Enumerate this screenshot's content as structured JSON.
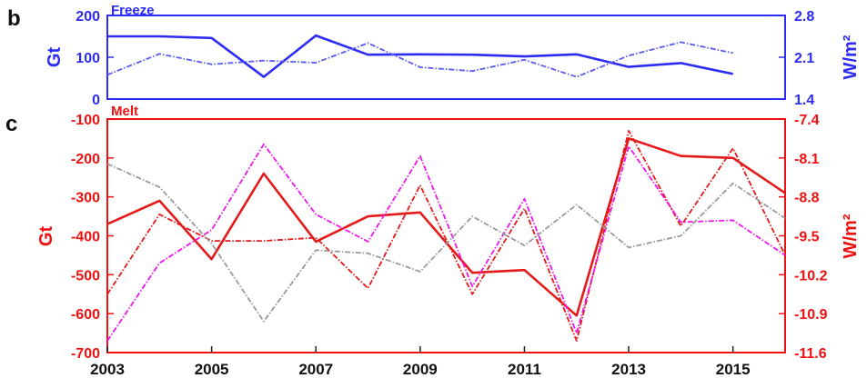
{
  "chart_data": [
    {
      "panel_label": "b",
      "title": "Freeze",
      "type": "line",
      "x": [
        2003,
        2004,
        2005,
        2006,
        2007,
        2008,
        2009,
        2010,
        2011,
        2012,
        2013,
        2014,
        2015,
        2016
      ],
      "xlim": [
        2003,
        2016
      ],
      "ylabel_left": "Gt",
      "ylim_left": [
        0,
        200
      ],
      "yticks_left": [
        "0",
        "100",
        "200"
      ],
      "ylabel_right": "W/m²",
      "ylim_right": [
        1.4,
        2.8
      ],
      "yticks_right": [
        "1.4",
        "2.1",
        "2.8"
      ],
      "color": "#2c2cf2",
      "series": [
        {
          "axis": "left",
          "style": "solid",
          "color": "#2c2cf2",
          "values": [
            150,
            150,
            146,
            53,
            152,
            106,
            107,
            106,
            102,
            107,
            77,
            86,
            60,
            null
          ]
        },
        {
          "axis": "left",
          "style": "dashdot",
          "color": "#5a5af0",
          "values": [
            58,
            108,
            83,
            92,
            87,
            134,
            76,
            67,
            94,
            53,
            104,
            136,
            110,
            null
          ]
        }
      ]
    },
    {
      "panel_label": "c",
      "title": "Melt",
      "type": "line",
      "x": [
        2003,
        2004,
        2005,
        2006,
        2007,
        2008,
        2009,
        2010,
        2011,
        2012,
        2013,
        2014,
        2015,
        2016
      ],
      "xlim": [
        2003,
        2016
      ],
      "xticks": [
        "2003",
        "2005",
        "2007",
        "2009",
        "2011",
        "2013",
        "2015"
      ],
      "ylabel_left": "Gt",
      "ylim_left": [
        -700,
        -100
      ],
      "yticks_left": [
        "-100",
        "-200",
        "-300",
        "-400",
        "-500",
        "-600",
        "-700"
      ],
      "ylabel_right": "W/m²",
      "ylim_right": [
        -11.6,
        -7.4
      ],
      "yticks_right": [
        "-7.4",
        "-8.1",
        "-8.8",
        "-9.5",
        "-10.2",
        "-10.9",
        "-11.6"
      ],
      "color": "#ee1111",
      "series": [
        {
          "axis": "left",
          "style": "solid",
          "color": "#e41a1a",
          "values": [
            -370,
            -310,
            -460,
            -240,
            -415,
            -350,
            -340,
            -495,
            -488,
            -605,
            -150,
            -195,
            -200,
            -290
          ]
        },
        {
          "axis": "left",
          "style": "dashdot",
          "color": "#e41a1a",
          "values": [
            -550,
            -345,
            -413,
            -413,
            -405,
            -535,
            -270,
            -550,
            -330,
            -670,
            -130,
            -375,
            -175,
            -450
          ]
        },
        {
          "axis": "left",
          "style": "dashdot",
          "color": "#ee16ee",
          "values": [
            -670,
            -470,
            -385,
            -165,
            -345,
            -415,
            -195,
            -530,
            -305,
            -650,
            -170,
            -365,
            -360,
            -450
          ]
        },
        {
          "axis": "left",
          "style": "dashdot",
          "color": "#9a9a9a",
          "values": [
            -215,
            -275,
            -420,
            -620,
            -437,
            -445,
            -492,
            -350,
            -425,
            -320,
            -430,
            -400,
            -265,
            -355
          ]
        }
      ]
    }
  ]
}
